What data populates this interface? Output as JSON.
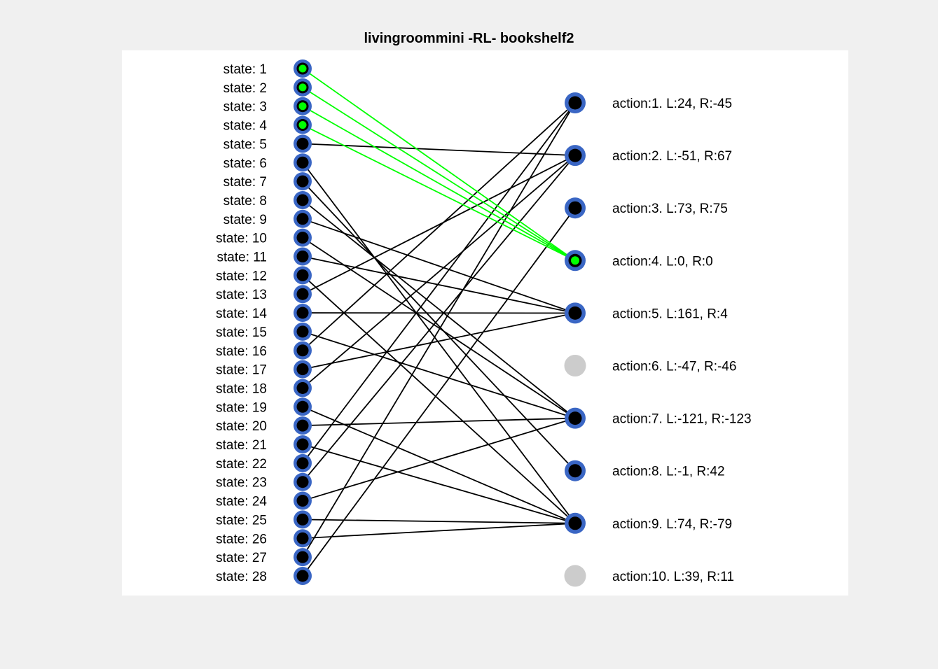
{
  "title": "livingroommini -RL- bookshelf2",
  "colors": {
    "figure_background": "#f0f0f0",
    "axes_background": "#ffffff",
    "node_ring": "#3a66c4",
    "node_fill": "#000000",
    "active_fill": "#00ff00",
    "inactive_node": "#cccccc",
    "edge": "#000000",
    "active_edge": "#00ff00"
  },
  "states": [
    {
      "id": 1,
      "label": "state: 1",
      "active": true
    },
    {
      "id": 2,
      "label": "state: 2",
      "active": true
    },
    {
      "id": 3,
      "label": "state: 3",
      "active": true
    },
    {
      "id": 4,
      "label": "state: 4",
      "active": true
    },
    {
      "id": 5,
      "label": "state: 5",
      "active": false
    },
    {
      "id": 6,
      "label": "state: 6",
      "active": false
    },
    {
      "id": 7,
      "label": "state: 7",
      "active": false
    },
    {
      "id": 8,
      "label": "state: 8",
      "active": false
    },
    {
      "id": 9,
      "label": "state: 9",
      "active": false
    },
    {
      "id": 10,
      "label": "state: 10",
      "active": false
    },
    {
      "id": 11,
      "label": "state: 11",
      "active": false
    },
    {
      "id": 12,
      "label": "state: 12",
      "active": false
    },
    {
      "id": 13,
      "label": "state: 13",
      "active": false
    },
    {
      "id": 14,
      "label": "state: 14",
      "active": false
    },
    {
      "id": 15,
      "label": "state: 15",
      "active": false
    },
    {
      "id": 16,
      "label": "state: 16",
      "active": false
    },
    {
      "id": 17,
      "label": "state: 17",
      "active": false
    },
    {
      "id": 18,
      "label": "state: 18",
      "active": false
    },
    {
      "id": 19,
      "label": "state: 19",
      "active": false
    },
    {
      "id": 20,
      "label": "state: 20",
      "active": false
    },
    {
      "id": 21,
      "label": "state: 21",
      "active": false
    },
    {
      "id": 22,
      "label": "state: 22",
      "active": false
    },
    {
      "id": 23,
      "label": "state: 23",
      "active": false
    },
    {
      "id": 24,
      "label": "state: 24",
      "active": false
    },
    {
      "id": 25,
      "label": "state: 25",
      "active": false
    },
    {
      "id": 26,
      "label": "state: 26",
      "active": false
    },
    {
      "id": 27,
      "label": "state: 27",
      "active": false
    },
    {
      "id": 28,
      "label": "state: 28",
      "active": false
    }
  ],
  "actions": [
    {
      "id": 1,
      "label": "action:1.  L:24,  R:-45",
      "status": "used"
    },
    {
      "id": 2,
      "label": "action:2.  L:-51,  R:67",
      "status": "used"
    },
    {
      "id": 3,
      "label": "action:3.  L:73,  R:75",
      "status": "used"
    },
    {
      "id": 4,
      "label": "action:4.  L:0,  R:0",
      "status": "active"
    },
    {
      "id": 5,
      "label": "action:5.  L:161,  R:4",
      "status": "used"
    },
    {
      "id": 6,
      "label": "action:6.  L:-47,  R:-46",
      "status": "unused"
    },
    {
      "id": 7,
      "label": "action:7.  L:-121,  R:-123",
      "status": "used"
    },
    {
      "id": 8,
      "label": "action:8.  L:-1,  R:42",
      "status": "used"
    },
    {
      "id": 9,
      "label": "action:9.  L:74,  R:-79",
      "status": "used"
    },
    {
      "id": 10,
      "label": "action:10.  L:39,  R:11",
      "status": "unused"
    }
  ],
  "edges": [
    {
      "state": 1,
      "action": 4
    },
    {
      "state": 2,
      "action": 4
    },
    {
      "state": 3,
      "action": 4
    },
    {
      "state": 4,
      "action": 4
    },
    {
      "state": 5,
      "action": 2
    },
    {
      "state": 6,
      "action": 9
    },
    {
      "state": 7,
      "action": 8
    },
    {
      "state": 8,
      "action": 7
    },
    {
      "state": 9,
      "action": 5
    },
    {
      "state": 10,
      "action": 7
    },
    {
      "state": 11,
      "action": 5
    },
    {
      "state": 12,
      "action": 9
    },
    {
      "state": 13,
      "action": 2
    },
    {
      "state": 14,
      "action": 5
    },
    {
      "state": 15,
      "action": 7
    },
    {
      "state": 16,
      "action": 1
    },
    {
      "state": 17,
      "action": 5
    },
    {
      "state": 18,
      "action": 2
    },
    {
      "state": 19,
      "action": 9
    },
    {
      "state": 20,
      "action": 7
    },
    {
      "state": 21,
      "action": 9
    },
    {
      "state": 22,
      "action": 1
    },
    {
      "state": 23,
      "action": 2
    },
    {
      "state": 24,
      "action": 7
    },
    {
      "state": 25,
      "action": 9
    },
    {
      "state": 26,
      "action": 9
    },
    {
      "state": 27,
      "action": 1
    },
    {
      "state": 28,
      "action": 3
    }
  ]
}
